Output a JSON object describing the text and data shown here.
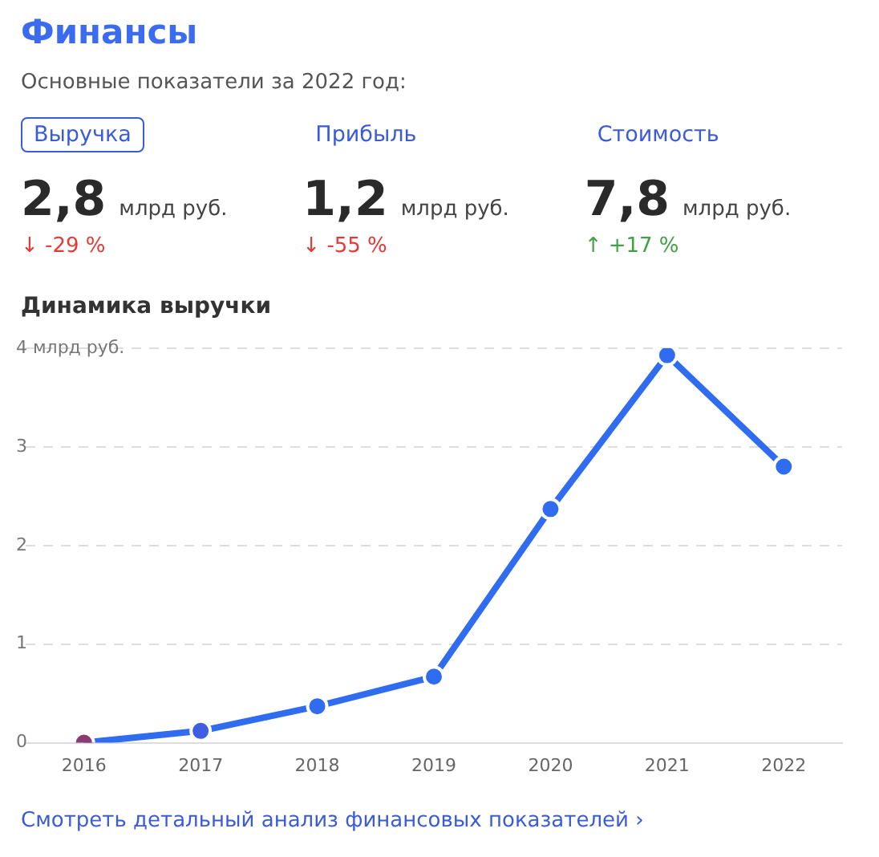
{
  "chart_data": [
    {
      "type": "other",
      "title": "Финансы",
      "subtitle": "Основные показатели за 2022 год:",
      "annotations": [
        "Выручка",
        "2,8",
        "млрд руб.",
        "↓ -29 %",
        "Прибыль",
        "1,2",
        "млрд руб.",
        "↓ -55 %",
        "Стоимость",
        "7,8",
        "млрд руб.",
        "↑ +17 %"
      ],
      "colors": [
        "#e53935",
        "#e53935",
        "#43a047"
      ]
    },
    {
      "type": "line",
      "title": "Динамика выручки",
      "categories": [
        "2016",
        "2017",
        "2018",
        "2019",
        "2020",
        "2021",
        "2022"
      ],
      "series": [
        {
          "color": "#2f6cf0",
          "colors": [
            "#8b3a72",
            "#3d5fe0",
            "#2f6cf0",
            "#2f6cf0",
            "#2f6cf0",
            "#2f6cf0",
            "#2f6cf0"
          ],
          "values": [
            0.0,
            0.12,
            0.37,
            0.67,
            2.37,
            3.93,
            2.8
          ]
        }
      ],
      "ylim": [
        0,
        4
      ],
      "yticks": [
        0,
        1,
        2,
        3,
        {
          "value": 4,
          "label": "4 млрд руб."
        }
      ],
      "grid": "y",
      "marker": "circle",
      "line_style": "solid",
      "legend": false,
      "annotations": [
        "Смотреть детальный анализ финансовых показателей ›"
      ]
    }
  ]
}
